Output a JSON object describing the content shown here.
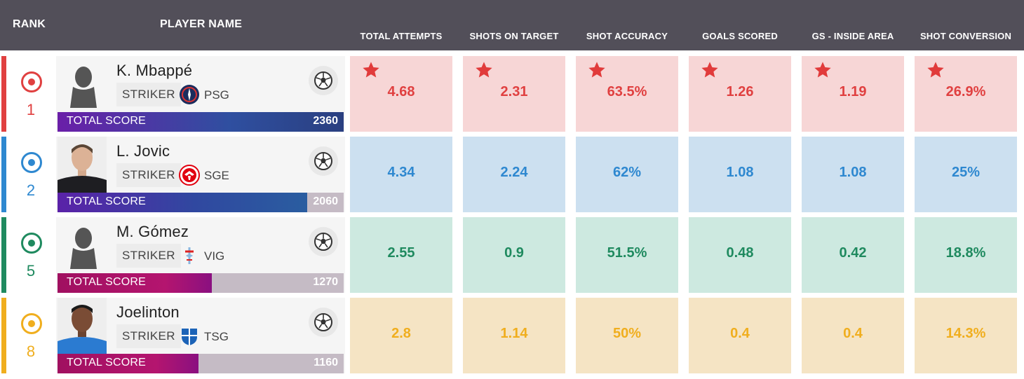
{
  "header": {
    "rank": "RANK",
    "player_name": "PLAYER NAME",
    "columns": [
      "TOTAL ATTEMPTS",
      "SHOTS ON TARGET",
      "SHOT ACCURACY",
      "GOALS SCORED",
      "GS - INSIDE AREA",
      "SHOT CONVERSION"
    ]
  },
  "rows": [
    {
      "rank": "1",
      "name": "K. Mbappé",
      "position": "STRIKER",
      "club": "PSG",
      "score_label": "TOTAL SCORE",
      "score": "2360",
      "score_fraction": 1.0,
      "stats": [
        "4.68",
        "2.31",
        "63.5%",
        "1.26",
        "1.19",
        "26.9%"
      ],
      "color": "#e04040",
      "best_in_all": true
    },
    {
      "rank": "2",
      "name": "L. Jovic",
      "position": "STRIKER",
      "club": "SGE",
      "score_label": "TOTAL SCORE",
      "score": "2060",
      "score_fraction": 0.873,
      "stats": [
        "4.34",
        "2.24",
        "62%",
        "1.08",
        "1.08",
        "25%"
      ],
      "color": "#2e88d0"
    },
    {
      "rank": "5",
      "name": "M. Gómez",
      "position": "STRIKER",
      "club": "VIG",
      "score_label": "TOTAL SCORE",
      "score": "1270",
      "score_fraction": 0.538,
      "stats": [
        "2.55",
        "0.9",
        "51.5%",
        "0.48",
        "0.42",
        "18.8%"
      ],
      "color": "#1f8a5f"
    },
    {
      "rank": "8",
      "name": "Joelinton",
      "position": "STRIKER",
      "club": "TSG",
      "score_label": "TOTAL SCORE",
      "score": "1160",
      "score_fraction": 0.492,
      "stats": [
        "2.8",
        "1.14",
        "50%",
        "0.4",
        "0.4",
        "14.3%"
      ],
      "color": "#f0ae1e"
    }
  ],
  "icons": {
    "rank": "target-icon",
    "ball": "soccer-ball-icon",
    "star": "star-icon"
  }
}
